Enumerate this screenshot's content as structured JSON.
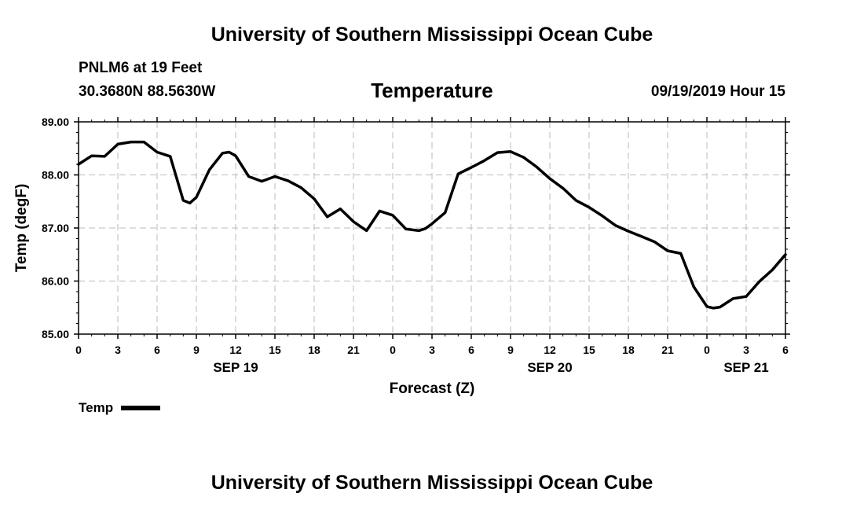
{
  "header": {
    "top_title": "University of Southern Mississippi Ocean Cube",
    "station": "PNLM6 at 19 Feet",
    "coords": "30.3680N 88.5630W",
    "datetime": "09/19/2019 Hour 15",
    "bottom_title": "University of Southern Mississippi Ocean Cube"
  },
  "legend": {
    "label": "Temp"
  },
  "chart_data": {
    "type": "line",
    "title": "Temperature",
    "xlabel": "Forecast (Z)",
    "ylabel": "Temp (degF)",
    "ylim": [
      85.0,
      89.0
    ],
    "xlim": [
      0,
      54
    ],
    "yticks": [
      "85.00",
      "86.00",
      "87.00",
      "88.00",
      "89.00"
    ],
    "xticks": [
      "0",
      "3",
      "6",
      "9",
      "12",
      "15",
      "18",
      "21",
      "0",
      "3",
      "6",
      "9",
      "12",
      "15",
      "18",
      "21",
      "0",
      "3",
      "6"
    ],
    "date_labels": [
      {
        "label": "SEP 19",
        "hour": 12
      },
      {
        "label": "SEP 20",
        "hour": 36
      },
      {
        "label": "SEP 21",
        "hour": 51
      }
    ],
    "grid": true,
    "series": [
      {
        "name": "Temp",
        "color": "#000000",
        "x": [
          0,
          1,
          2,
          3,
          4,
          5,
          6,
          7,
          8,
          8.5,
          9,
          10,
          11,
          11.5,
          12,
          13,
          14,
          15,
          16,
          17,
          18,
          19,
          20,
          21,
          22,
          23,
          24,
          25,
          26,
          26.5,
          27,
          28,
          29,
          30,
          31,
          32,
          33,
          34,
          35,
          36,
          37,
          38,
          39,
          40,
          41,
          42,
          43,
          44,
          45,
          46,
          47,
          48,
          48.5,
          49,
          50,
          51,
          52,
          53,
          54
        ],
        "values": [
          88.2,
          88.36,
          88.35,
          88.58,
          88.62,
          88.62,
          88.43,
          88.35,
          87.52,
          87.47,
          87.58,
          88.1,
          88.41,
          88.43,
          88.36,
          87.97,
          87.88,
          87.97,
          87.89,
          87.76,
          87.55,
          87.21,
          87.36,
          87.12,
          86.95,
          87.32,
          87.24,
          86.98,
          86.95,
          86.99,
          87.08,
          87.29,
          88.02,
          88.14,
          88.27,
          88.42,
          88.44,
          88.33,
          88.15,
          87.93,
          87.75,
          87.52,
          87.39,
          87.23,
          87.05,
          86.94,
          86.84,
          86.74,
          86.57,
          86.52,
          85.89,
          85.52,
          85.49,
          85.51,
          85.67,
          85.71,
          85.99,
          86.21,
          86.5
        ]
      }
    ]
  }
}
